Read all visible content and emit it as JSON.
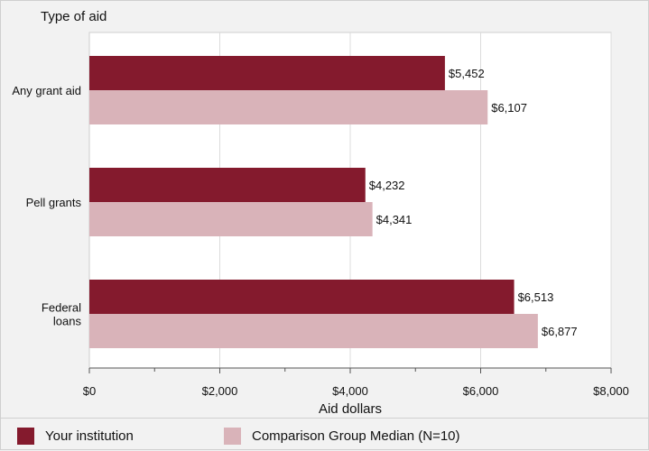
{
  "chart_data": {
    "type": "bar",
    "orientation": "horizontal",
    "title": "Type of aid",
    "xlabel": "Aid dollars",
    "categories": [
      "Any grant aid",
      "Pell grants",
      "Federal loans"
    ],
    "category_lines": [
      [
        "Any grant aid"
      ],
      [
        "Pell grants"
      ],
      [
        "Federal",
        "loans"
      ]
    ],
    "series": [
      {
        "name": "Your institution",
        "values": [
          5452,
          4232,
          6513
        ],
        "labels": [
          "$5,452",
          "$4,232",
          "$6,513"
        ],
        "color": "#841a2d"
      },
      {
        "name": "Comparison Group Median (N=10)",
        "values": [
          6107,
          4341,
          6877
        ],
        "labels": [
          "$6,107",
          "$4,341",
          "$6,877"
        ],
        "color": "#d9b3b9"
      }
    ],
    "xlim": [
      0,
      8000
    ],
    "ticks": [
      0,
      2000,
      4000,
      6000,
      8000
    ],
    "tick_labels": [
      "$0",
      "$2,000",
      "$4,000",
      "$6,000",
      "$8,000"
    ],
    "grid": true,
    "legend_position": "bottom"
  }
}
